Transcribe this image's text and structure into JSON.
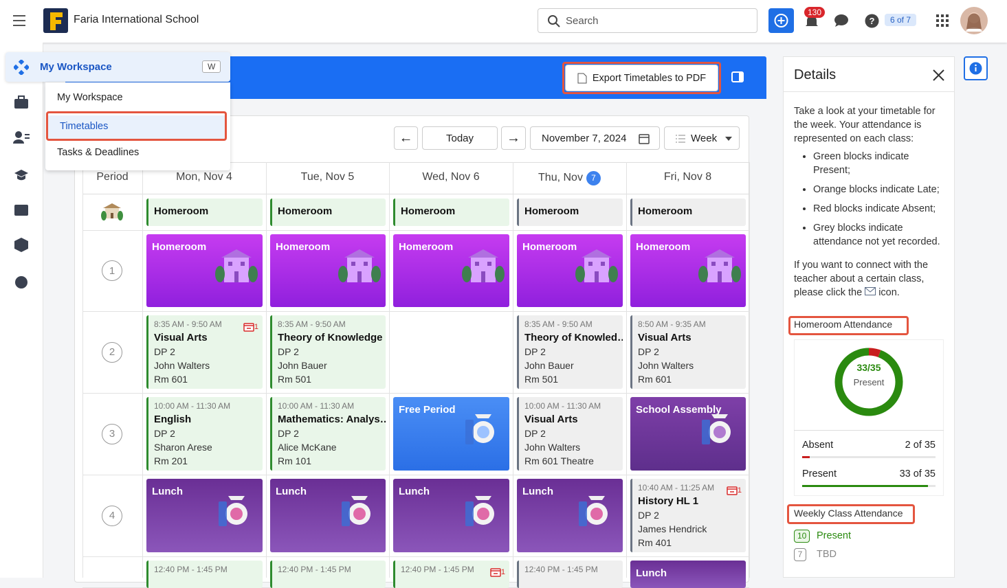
{
  "header": {
    "school_name": "Faria International School",
    "search_placeholder": "Search",
    "notification_count": "130",
    "help_badge": "6 of 7"
  },
  "menu": {
    "title": "My Workspace",
    "shortcut": "W",
    "items": [
      "My Workspace",
      "Timetables",
      "Tasks & Deadlines"
    ]
  },
  "toolbar": {
    "export": "Export Timetables to PDF",
    "today": "Today",
    "date": "November 7, 2024",
    "view": "Week"
  },
  "timetable": {
    "period_header": "Period",
    "days": [
      {
        "label": "Mon, Nov 4"
      },
      {
        "label": "Tue, Nov 5"
      },
      {
        "label": "Wed, Nov 6"
      },
      {
        "label": "Thu, Nov",
        "badge": "7"
      },
      {
        "label": "Fri, Nov 8"
      }
    ],
    "rows": [
      {
        "period": null,
        "cells": [
          {
            "title": "Homeroom",
            "style": "present"
          },
          {
            "title": "Homeroom",
            "style": "present"
          },
          {
            "title": "Homeroom",
            "style": "present"
          },
          {
            "title": "Homeroom",
            "style": "grey"
          },
          {
            "title": "Homeroom",
            "style": "grey"
          }
        ]
      },
      {
        "period": "1",
        "cells": [
          {
            "title": "Homeroom",
            "style": "purple"
          },
          {
            "title": "Homeroom",
            "style": "purple"
          },
          {
            "title": "Homeroom",
            "style": "purple"
          },
          {
            "title": "Homeroom",
            "style": "purple"
          },
          {
            "title": "Homeroom",
            "style": "purple"
          }
        ]
      },
      {
        "period": "2",
        "cells": [
          {
            "time": "8:35 AM - 9:50 AM",
            "title": "Visual Arts",
            "lines": [
              "DP 2",
              "John Walters",
              "Rm 601"
            ],
            "badge": "1",
            "style": "present"
          },
          {
            "time": "8:35 AM - 9:50 AM",
            "title": "Theory of Knowledge",
            "lines": [
              "DP 2",
              "John Bauer",
              "Rm 501"
            ],
            "style": "present"
          },
          null,
          {
            "time": "8:35 AM - 9:50 AM",
            "title": "Theory of Knowled…",
            "lines": [
              "DP 2",
              "John Bauer",
              "Rm 501"
            ],
            "style": "grey"
          },
          {
            "time": "8:50 AM - 9:35 AM",
            "title": "Visual Arts",
            "lines": [
              "DP 2",
              "John Walters",
              "Rm 601"
            ],
            "style": "grey"
          }
        ]
      },
      {
        "period": "3",
        "cells": [
          {
            "time": "10:00 AM - 11:30 AM",
            "title": "English",
            "lines": [
              "DP 2",
              "Sharon Arese",
              "Rm 201"
            ],
            "style": "present"
          },
          {
            "time": "10:00 AM - 11:30 AM",
            "title": "Mathematics: Analys…",
            "lines": [
              "DP 2",
              "Alice McKane",
              "Rm 101"
            ],
            "style": "present"
          },
          {
            "title": "Free Period",
            "style": "blue"
          },
          {
            "time": "10:00 AM - 11:30 AM",
            "title": "Visual Arts",
            "lines": [
              "DP 2",
              "John Walters",
              "Rm 601 Theatre"
            ],
            "style": "grey"
          },
          {
            "title": "School Assembly",
            "style": "assembly"
          }
        ]
      },
      {
        "period": "4",
        "cells": [
          {
            "title": "Lunch",
            "style": "lunch"
          },
          {
            "title": "Lunch",
            "style": "lunch"
          },
          {
            "title": "Lunch",
            "style": "lunch"
          },
          {
            "title": "Lunch",
            "style": "lunch"
          },
          {
            "time": "10:40 AM - 11:25 AM",
            "title": "History HL 1",
            "lines": [
              "DP 2",
              "James Hendrick",
              "Rm 401"
            ],
            "badge": "1",
            "style": "grey"
          }
        ]
      },
      {
        "period": null,
        "cells": [
          {
            "time": "12:40 PM - 1:45 PM",
            "style": "present"
          },
          {
            "time": "12:40 PM - 1:45 PM",
            "style": "present"
          },
          {
            "time": "12:40 PM - 1:45 PM",
            "badge": "1",
            "style": "present"
          },
          {
            "time": "12:40 PM - 1:45 PM",
            "style": "grey"
          },
          {
            "title": "Lunch",
            "style": "lunch"
          }
        ]
      }
    ]
  },
  "details": {
    "title": "Details",
    "intro": "Take a look at your timetable for the week. Your attendance is represented on each class:",
    "bullets": [
      "Green blocks indicate Present;",
      "Orange blocks indicate Late;",
      "Red blocks indicate Absent;",
      "Grey blocks indicate attendance not yet recorded."
    ],
    "connect": "If you want to connect with the teacher about a certain class, please click the",
    "connect_end": "icon.",
    "homeroom": {
      "title": "Homeroom Attendance",
      "ratio_label": "33/35",
      "caption": "Present",
      "present": 33,
      "absent": 2,
      "total": 35,
      "rows": [
        {
          "label": "Absent",
          "value_label": "2 of 35"
        },
        {
          "label": "Present",
          "value_label": "33 of 35"
        }
      ]
    },
    "weekly": {
      "title": "Weekly Class Attendance",
      "items": [
        {
          "count": "10",
          "label": "Present"
        },
        {
          "count": "7",
          "label": "TBD"
        }
      ]
    }
  }
}
